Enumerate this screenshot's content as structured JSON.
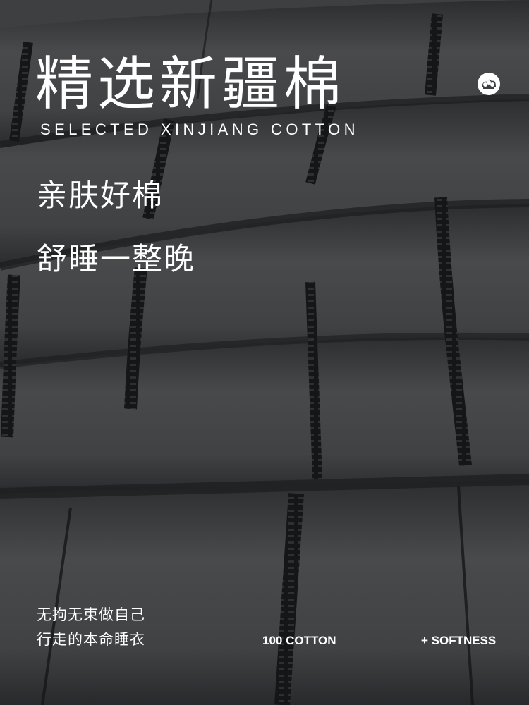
{
  "heading": {
    "title_cn": "精选新疆棉",
    "title_en": "SELECTED XINJIANG COTTON",
    "icon": "cotton-flower-icon"
  },
  "slogans": [
    "亲肤好棉",
    "舒睡一整晚"
  ],
  "taglines": [
    "无拘无束做自己",
    "行走的本命睡衣"
  ],
  "features": [
    "100 COTTON",
    "+ SOFTNESS"
  ],
  "colors": {
    "fabric": "#3e3f41",
    "fold_shadow": "#1b1c1e",
    "stripe": "#111214",
    "text": "#ffffff"
  }
}
